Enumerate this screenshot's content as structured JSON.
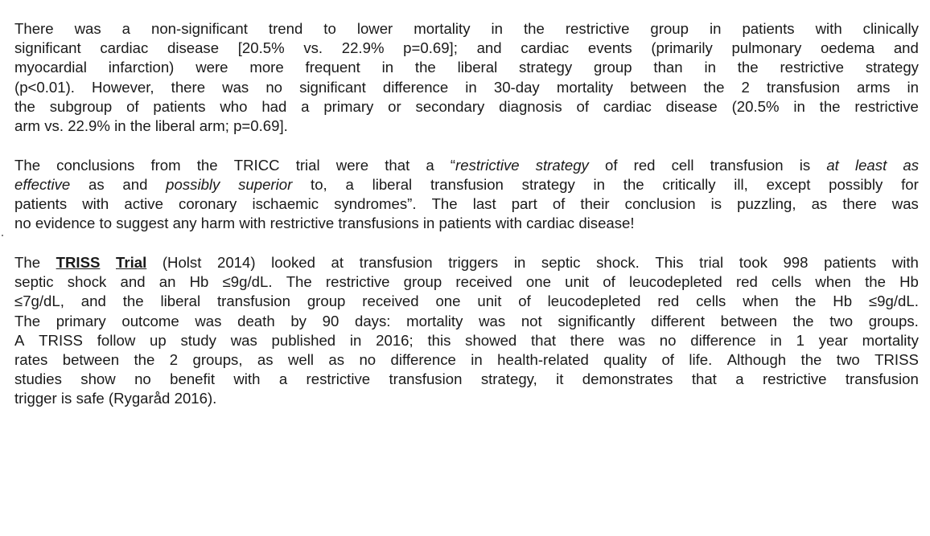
{
  "paragraphs": [
    {
      "lines": [
        "There was a non-significant trend to lower mortality in the restrictive group in patients with clinically",
        "significant cardiac disease [20.5% vs. 22.9% p=0.69]; and cardiac events (primarily pulmonary oedema and",
        "myocardial infarction) were more frequent in the liberal strategy group than in the restrictive strategy",
        "(p<0.01). However, there was no significant difference in 30-day mortality between the 2 transfusion arms in",
        "the subgroup of patients who had a primary or secondary diagnosis of cardiac disease (20.5% in the restrictive",
        "arm vs. 22.9% in the liberal arm; p=0.69]."
      ]
    },
    {
      "lines": [
        [
          {
            "t": "The conclusions from the TRICC trial were that a “"
          },
          {
            "t": "restrictive strategy",
            "s": "em"
          },
          {
            "t": " of red cell transfusion is "
          },
          {
            "t": "at least as",
            "s": "em"
          }
        ],
        [
          {
            "t": "effective",
            "s": "em"
          },
          {
            "t": " as and "
          },
          {
            "t": "possibly superior",
            "s": "em"
          },
          {
            "t": " to, a liberal transfusion strategy in the critically ill, except possibly for"
          }
        ],
        "patients with active coronary ischaemic syndromes”. The last part of their conclusion is puzzling, as there was",
        "no evidence to suggest any harm with restrictive transfusions in patients with cardiac disease!"
      ]
    },
    {
      "lines": [
        [
          {
            "t": "The "
          },
          {
            "t": "TRISS Trial",
            "s": "bu"
          },
          {
            "t": " (Holst 2014) looked at transfusion triggers in septic shock. This trial took 998 patients with"
          }
        ],
        "septic shock and an Hb ≤9g/dL. The restrictive group received one unit of leucodepleted red cells when the Hb",
        "≤7g/dL, and the liberal transfusion group received one unit of leucodepleted red cells when the Hb ≤9g/dL.",
        "The primary outcome was death by 90 days: mortality was not significantly different between the two groups.",
        "A TRISS follow up study was published in 2016; this showed that there was no difference in 1 year mortality",
        "rates between the 2 groups, as well as no difference in health-related quality of life. Although the two TRISS",
        "studies show no benefit with a restrictive transfusion strategy, it demonstrates that a restrictive transfusion",
        "trigger is safe (Rygaråd 2016)."
      ]
    }
  ]
}
